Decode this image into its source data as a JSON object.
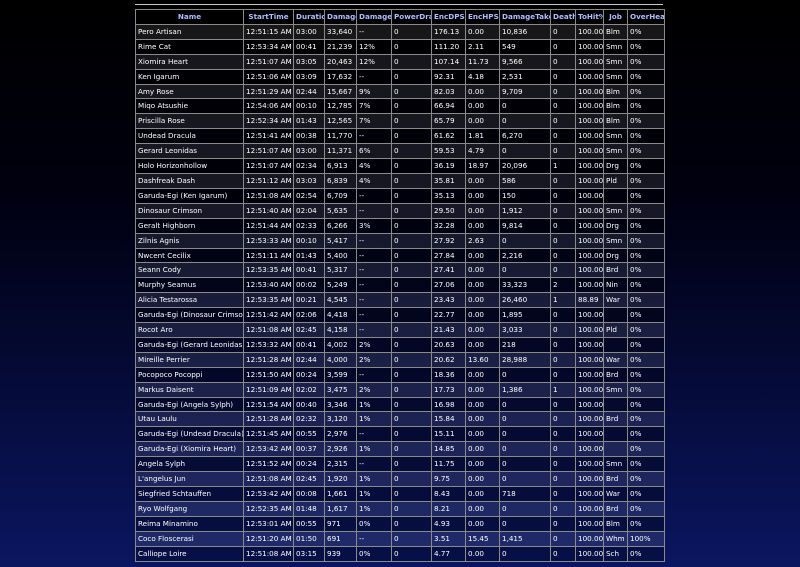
{
  "columns": [
    "Name",
    "StartTime",
    "Duration",
    "Damage",
    "Damage%",
    "PowerDrain",
    "EncDPS",
    "EncHPS",
    "DamageTaken",
    "Deaths",
    "ToHit%",
    "Job",
    "OverHealPct"
  ],
  "rows": [
    [
      "Pero Artisan",
      "12:51:15 AM",
      "03:00",
      "33,640",
      "--",
      "0",
      "176.13",
      "0.00",
      "10,836",
      "0",
      "100.00",
      "Blm",
      "0%"
    ],
    [
      "Rime Cat",
      "12:53:34 AM",
      "00:41",
      "21,239",
      "12%",
      "0",
      "111.20",
      "2.11",
      "549",
      "0",
      "100.00",
      "Smn",
      "0%"
    ],
    [
      "Xiomira Heart",
      "12:51:07 AM",
      "03:05",
      "20,463",
      "12%",
      "0",
      "107.14",
      "11.73",
      "9,566",
      "0",
      "100.00",
      "Smn",
      "0%"
    ],
    [
      "Ken Igarum",
      "12:51:06 AM",
      "03:09",
      "17,632",
      "--",
      "0",
      "92.31",
      "4.18",
      "2,531",
      "0",
      "100.00",
      "Smn",
      "0%"
    ],
    [
      "Amy Rose",
      "12:51:29 AM",
      "02:44",
      "15,667",
      "9%",
      "0",
      "82.03",
      "0.00",
      "9,709",
      "0",
      "100.00",
      "Blm",
      "0%"
    ],
    [
      "Miqo Atsushie",
      "12:54:06 AM",
      "00:10",
      "12,785",
      "7%",
      "0",
      "66.94",
      "0.00",
      "0",
      "0",
      "100.00",
      "Blm",
      "0%"
    ],
    [
      "Priscilla Rose",
      "12:52:34 AM",
      "01:43",
      "12,565",
      "7%",
      "0",
      "65.79",
      "0.00",
      "0",
      "0",
      "100.00",
      "Blm",
      "0%"
    ],
    [
      "Undead Dracula",
      "12:51:41 AM",
      "00:38",
      "11,770",
      "--",
      "0",
      "61.62",
      "1.81",
      "6,270",
      "0",
      "100.00",
      "Smn",
      "0%"
    ],
    [
      "Gerard Leonidas",
      "12:51:07 AM",
      "03:00",
      "11,371",
      "6%",
      "0",
      "59.53",
      "4.79",
      "0",
      "0",
      "100.00",
      "Smn",
      "0%"
    ],
    [
      "Holo Horizonhollow",
      "12:51:07 AM",
      "02:34",
      "6,913",
      "4%",
      "0",
      "36.19",
      "18.97",
      "20,096",
      "1",
      "100.00",
      "Drg",
      "0%"
    ],
    [
      "Dashfreak Dash",
      "12:51:12 AM",
      "03:03",
      "6,839",
      "4%",
      "0",
      "35.81",
      "0.00",
      "586",
      "0",
      "100.00",
      "Pld",
      "0%"
    ],
    [
      "Garuda-Egi (Ken Igarum)",
      "12:51:08 AM",
      "02:54",
      "6,709",
      "--",
      "0",
      "35.13",
      "0.00",
      "150",
      "0",
      "100.00",
      "",
      "0%"
    ],
    [
      "Dinosaur Crimson",
      "12:51:40 AM",
      "02:04",
      "5,635",
      "--",
      "0",
      "29.50",
      "0.00",
      "1,912",
      "0",
      "100.00",
      "Smn",
      "0%"
    ],
    [
      "Geralt Highborn",
      "12:51:44 AM",
      "02:33",
      "6,266",
      "3%",
      "0",
      "32.28",
      "0.00",
      "9,814",
      "0",
      "100.00",
      "Drg",
      "0%"
    ],
    [
      "Zilnis Agnis",
      "12:53:33 AM",
      "00:10",
      "5,417",
      "--",
      "0",
      "27.92",
      "2.63",
      "0",
      "0",
      "100.00",
      "Smn",
      "0%"
    ],
    [
      "Nwcent Cecilix",
      "12:51:11 AM",
      "01:43",
      "5,400",
      "--",
      "0",
      "27.84",
      "0.00",
      "2,216",
      "0",
      "100.00",
      "Drg",
      "0%"
    ],
    [
      "Seann Cody",
      "12:53:35 AM",
      "00:41",
      "5,317",
      "--",
      "0",
      "27.41",
      "0.00",
      "0",
      "0",
      "100.00",
      "Brd",
      "0%"
    ],
    [
      "Murphy Seamus",
      "12:53:40 AM",
      "00:02",
      "5,249",
      "--",
      "0",
      "27.06",
      "0.00",
      "33,323",
      "2",
      "100.00",
      "Nin",
      "0%"
    ],
    [
      "Alicia Testarossa",
      "12:53:35 AM",
      "00:21",
      "4,545",
      "--",
      "0",
      "23.43",
      "0.00",
      "26,460",
      "1",
      "88.89",
      "War",
      "0%"
    ],
    [
      "Garuda-Egi (Dinosaur Crimson)",
      "12:51:42 AM",
      "02:06",
      "4,418",
      "--",
      "0",
      "22.77",
      "0.00",
      "1,895",
      "0",
      "100.00",
      "",
      "0%"
    ],
    [
      "Rocot Aro",
      "12:51:08 AM",
      "02:45",
      "4,158",
      "--",
      "0",
      "21.43",
      "0.00",
      "3,033",
      "0",
      "100.00",
      "Pld",
      "0%"
    ],
    [
      "Garuda-Egi (Gerard Leonidas)",
      "12:53:32 AM",
      "00:41",
      "4,002",
      "2%",
      "0",
      "20.63",
      "0.00",
      "218",
      "0",
      "100.00",
      "",
      "0%"
    ],
    [
      "Mireille Perrier",
      "12:51:28 AM",
      "02:44",
      "4,000",
      "2%",
      "0",
      "20.62",
      "13.60",
      "28,988",
      "0",
      "100.00",
      "War",
      "0%"
    ],
    [
      "Pocopoco Pocoppi",
      "12:51:50 AM",
      "00:24",
      "3,599",
      "--",
      "0",
      "18.36",
      "0.00",
      "0",
      "0",
      "100.00",
      "Brd",
      "0%"
    ],
    [
      "Markus Daisent",
      "12:51:09 AM",
      "02:02",
      "3,475",
      "2%",
      "0",
      "17.73",
      "0.00",
      "1,386",
      "1",
      "100.00",
      "Smn",
      "0%"
    ],
    [
      "Garuda-Egi (Angela Sylph)",
      "12:51:54 AM",
      "00:40",
      "3,346",
      "1%",
      "0",
      "16.98",
      "0.00",
      "0",
      "0",
      "100.00",
      "",
      "0%"
    ],
    [
      "Utau Laulu",
      "12:51:28 AM",
      "02:32",
      "3,120",
      "1%",
      "0",
      "15.84",
      "0.00",
      "0",
      "0",
      "100.00",
      "Brd",
      "0%"
    ],
    [
      "Garuda-Egi (Undead Dracula)",
      "12:51:45 AM",
      "00:55",
      "2,976",
      "--",
      "0",
      "15.11",
      "0.00",
      "0",
      "0",
      "100.00",
      "",
      "0%"
    ],
    [
      "Garuda-Egi (Xiomira Heart)",
      "12:53:42 AM",
      "00:37",
      "2,926",
      "1%",
      "0",
      "14.85",
      "0.00",
      "0",
      "0",
      "100.00",
      "",
      "0%"
    ],
    [
      "Angela Sylph",
      "12:51:52 AM",
      "00:24",
      "2,315",
      "--",
      "0",
      "11.75",
      "0.00",
      "0",
      "0",
      "100.00",
      "Smn",
      "0%"
    ],
    [
      "L'angelus Jun",
      "12:51:08 AM",
      "02:45",
      "1,920",
      "1%",
      "0",
      "9.75",
      "0.00",
      "0",
      "0",
      "100.00",
      "Brd",
      "0%"
    ],
    [
      "Siegfried Schtauffen",
      "12:53:42 AM",
      "00:08",
      "1,661",
      "1%",
      "0",
      "8.43",
      "0.00",
      "718",
      "0",
      "100.00",
      "War",
      "0%"
    ],
    [
      "Ryo Wolfgang",
      "12:52:35 AM",
      "01:48",
      "1,617",
      "1%",
      "0",
      "8.21",
      "0.00",
      "0",
      "0",
      "100.00",
      "Brd",
      "0%"
    ],
    [
      "Reima Minamino",
      "12:53:01 AM",
      "00:55",
      "971",
      "0%",
      "0",
      "4.93",
      "0.00",
      "0",
      "0",
      "100.00",
      "Blm",
      "0%"
    ],
    [
      "Coco Floscerasi",
      "12:51:20 AM",
      "01:50",
      "691",
      "--",
      "0",
      "3.51",
      "15.45",
      "1,415",
      "0",
      "100.00",
      "Whm",
      "100%"
    ],
    [
      "Calliope Loire",
      "12:51:08 AM",
      "03:15",
      "939",
      "0%",
      "0",
      "4.77",
      "0.00",
      "0",
      "0",
      "100.00",
      "Sch",
      "0%"
    ]
  ]
}
